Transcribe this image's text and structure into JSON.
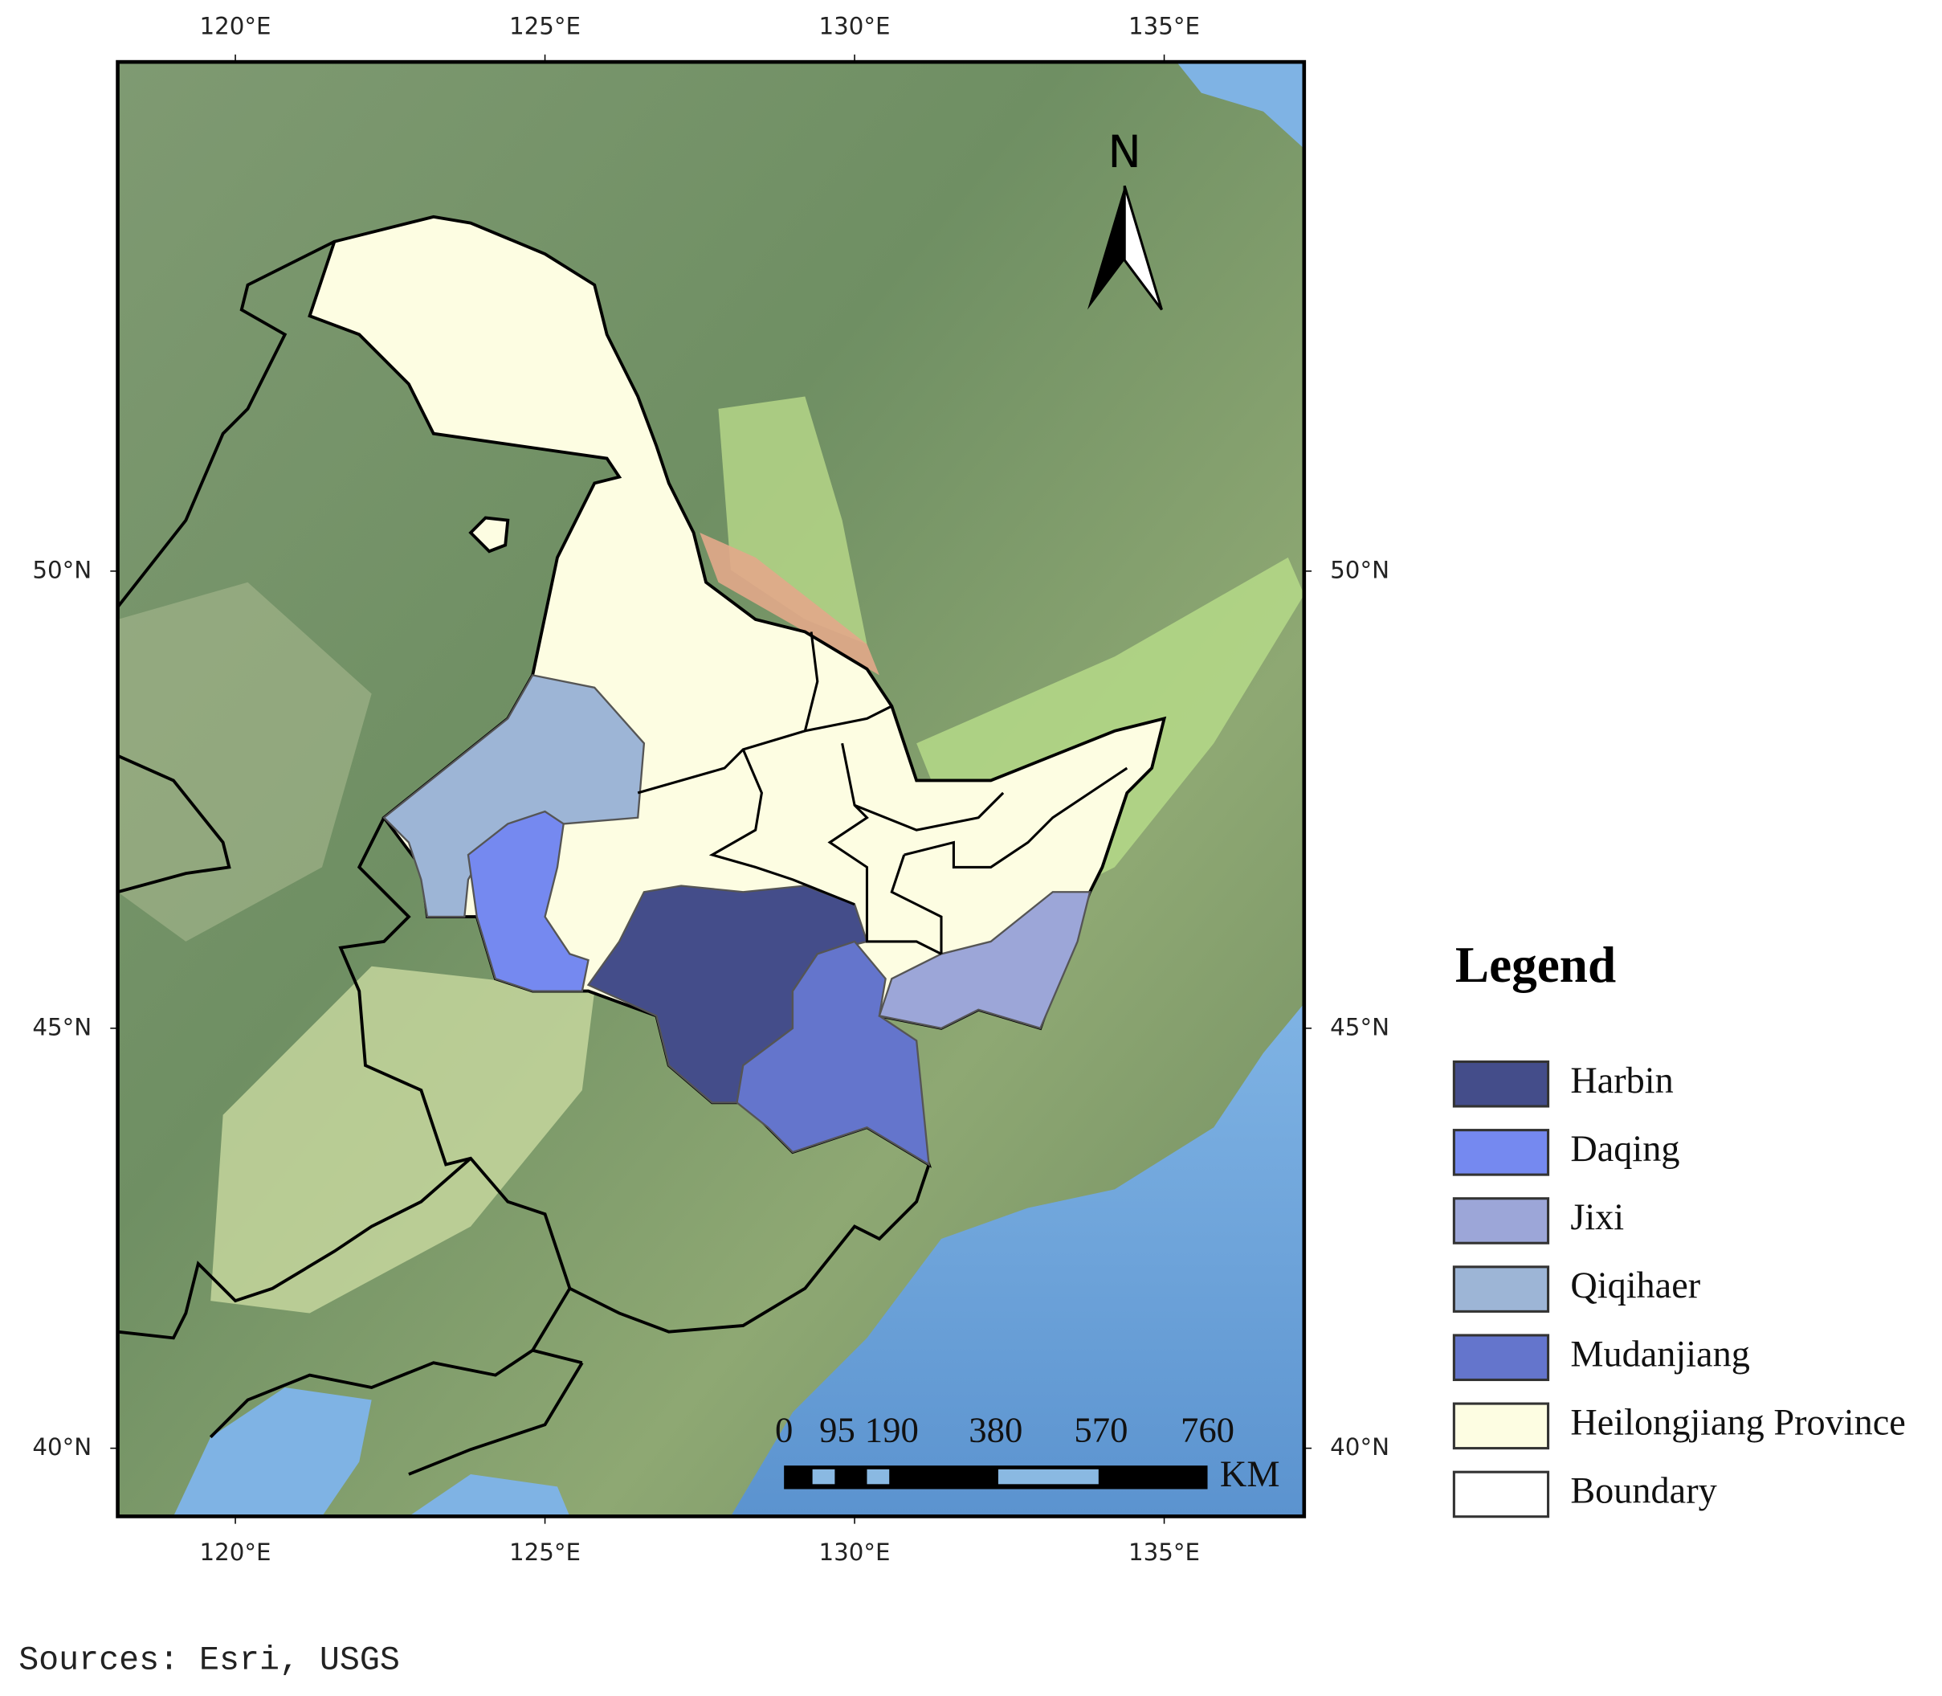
{
  "map": {
    "longitude_ticks": [
      "120°E",
      "125°E",
      "130°E",
      "135°E"
    ],
    "latitude_ticks": [
      "50°N",
      "45°N",
      "40°N"
    ],
    "north": "N",
    "scale_bar": {
      "labels": [
        "0",
        "95",
        "190",
        "380",
        "570",
        "760"
      ],
      "unit": "KM"
    },
    "legend": {
      "title": "Legend",
      "items": [
        {
          "label": "Harbin",
          "color": "#444d8a"
        },
        {
          "label": "Daqing",
          "color": "#7589f0"
        },
        {
          "label": "Jixi",
          "color": "#9ca6d8"
        },
        {
          "label": "Qiqihaer",
          "color": "#9db5d6"
        },
        {
          "label": "Mudanjiang",
          "color": "#6475cc"
        },
        {
          "label": "Heilongjiang Province",
          "color": "#fdfde2"
        },
        {
          "label": "Boundary",
          "color": "#ffffff"
        }
      ]
    }
  },
  "source": "Sources: Esri, USGS"
}
